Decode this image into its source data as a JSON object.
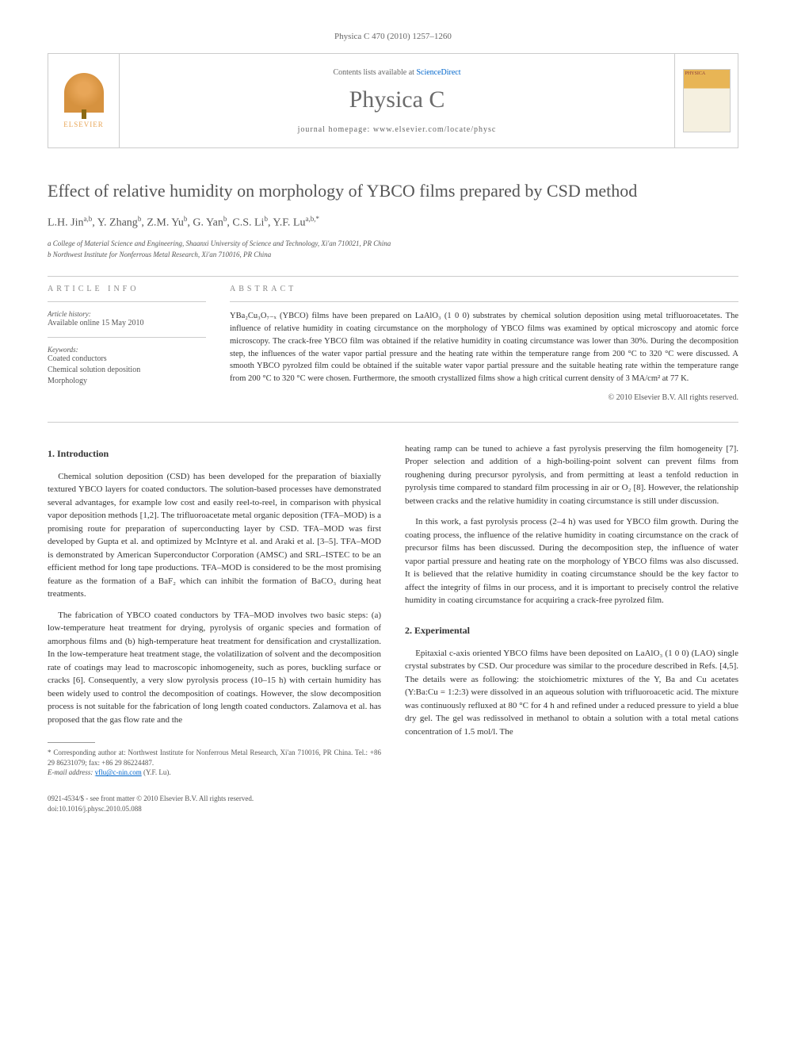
{
  "header": {
    "running_head": "Physica C 470 (2010) 1257–1260"
  },
  "journal_box": {
    "publisher": "ELSEVIER",
    "contents_prefix": "Contents lists available at ",
    "contents_link": "ScienceDirect",
    "journal_name": "Physica C",
    "homepage_label": "journal homepage: www.elsevier.com/locate/physc",
    "cover_label": "PHYSICA"
  },
  "article": {
    "title": "Effect of relative humidity on morphology of YBCO films prepared by CSD method",
    "authors_html": "L.H. Jin<sup>a,b</sup>, Y. Zhang<sup>b</sup>, Z.M. Yu<sup>b</sup>, G. Yan<sup>b</sup>, C.S. Li<sup>b</sup>, Y.F. Lu<sup>a,b,*</sup>",
    "affiliations": [
      "a College of Material Science and Engineering, Shaanxi University of Science and Technology, Xi'an 710021, PR China",
      "b Northwest Institute for Nonferrous Metal Research, Xi'an 710016, PR China"
    ]
  },
  "info": {
    "heading": "ARTICLE INFO",
    "history_label": "Article history:",
    "history_text": "Available online 15 May 2010",
    "keywords_label": "Keywords:",
    "keywords": [
      "Coated conductors",
      "Chemical solution deposition",
      "Morphology"
    ]
  },
  "abstract": {
    "heading": "ABSTRACT",
    "text": "YBa₂Cu₃O₇₋ₓ (YBCO) films have been prepared on LaAlO₃ (1 0 0) substrates by chemical solution deposition using metal trifluoroacetates. The influence of relative humidity in coating circumstance on the morphology of YBCO films was examined by optical microscopy and atomic force microscopy. The crack-free YBCO film was obtained if the relative humidity in coating circumstance was lower than 30%. During the decomposition step, the influences of the water vapor partial pressure and the heating rate within the temperature range from 200 °C to 320 °C were discussed. A smooth YBCO pyrolzed film could be obtained if the suitable water vapor partial pressure and the suitable heating rate within the temperature range from 200 °C to 320 °C were chosen. Furthermore, the smooth crystallized films show a high critical current density of 3 MA/cm² at 77 K.",
    "copyright": "© 2010 Elsevier B.V. All rights reserved."
  },
  "sections": {
    "intro_heading": "1. Introduction",
    "intro_p1": "Chemical solution deposition (CSD) has been developed for the preparation of biaxially textured YBCO layers for coated conductors. The solution-based processes have demonstrated several advantages, for example low cost and easily reel-to-reel, in comparison with physical vapor deposition methods [1,2]. The trifluoroacetate metal organic deposition (TFA–MOD) is a promising route for preparation of superconducting layer by CSD. TFA–MOD was first developed by Gupta et al. and optimized by McIntyre et al. and Araki et al. [3–5]. TFA–MOD is demonstrated by American Superconductor Corporation (AMSC) and SRL–ISTEC to be an efficient method for long tape productions. TFA–MOD is considered to be the most promising feature as the formation of a BaF₂ which can inhibit the formation of BaCO₃ during heat treatments.",
    "intro_p2": "The fabrication of YBCO coated conductors by TFA–MOD involves two basic steps: (a) low-temperature heat treatment for drying, pyrolysis of organic species and formation of amorphous films and (b) high-temperature heat treatment for densification and crystallization. In the low-temperature heat treatment stage, the volatilization of solvent and the decomposition rate of coatings may lead to macroscopic inhomogeneity, such as pores, buckling surface or cracks [6]. Consequently, a very slow pyrolysis process (10–15 h) with certain humidity has been widely used to control the decomposition of coatings. However, the slow decomposition process is not suitable for the fabrication of long length coated conductors. Zalamova et al. has proposed that the gas flow rate and the",
    "intro_p3": "heating ramp can be tuned to achieve a fast pyrolysis preserving the film homogeneity [7]. Proper selection and addition of a high-boiling-point solvent can prevent films from roughening during precursor pyrolysis, and from permitting at least a tenfold reduction in pyrolysis time compared to standard film processing in air or O₂ [8]. However, the relationship between cracks and the relative humidity in coating circumstance is still under discussion.",
    "intro_p4": "In this work, a fast pyrolysis process (2–4 h) was used for YBCO film growth. During the coating process, the influence of the relative humidity in coating circumstance on the crack of precursor films has been discussed. During the decomposition step, the influence of water vapor partial pressure and heating rate on the morphology of YBCO films was also discussed. It is believed that the relative humidity in coating circumstance should be the key factor to affect the integrity of films in our process, and it is important to precisely control the relative humidity in coating circumstance for acquiring a crack-free pyrolzed film.",
    "exp_heading": "2. Experimental",
    "exp_p1": "Epitaxial c-axis oriented YBCO films have been deposited on LaAlO₃ (1 0 0) (LAO) single crystal substrates by CSD. Our procedure was similar to the procedure described in Refs. [4,5]. The details were as following: the stoichiometric mixtures of the Y, Ba and Cu acetates (Y:Ba:Cu = 1:2:3) were dissolved in an aqueous solution with trifluoroacetic acid. The mixture was continuously refluxed at 80 °C for 4 h and refined under a reduced pressure to yield a blue dry gel. The gel was redissolved in methanol to obtain a solution with a total metal cations concentration of 1.5 mol/l. The"
  },
  "footnote": {
    "corr": "* Corresponding author at: Northwest Institute for Nonferrous Metal Research, Xi'an 710016, PR China. Tel.: +86 29 86231079; fax: +86 29 86224487.",
    "email_label": "E-mail address: ",
    "email": "yflu@c-nin.com",
    "email_suffix": " (Y.F. Lu)."
  },
  "footer": {
    "issn": "0921-4534/$ - see front matter © 2010 Elsevier B.V. All rights reserved.",
    "doi": "doi:10.1016/j.physc.2010.05.088"
  },
  "styles": {
    "link_color": "#0066cc",
    "text_color": "#333333",
    "heading_color": "#555555",
    "background": "#ffffff"
  }
}
